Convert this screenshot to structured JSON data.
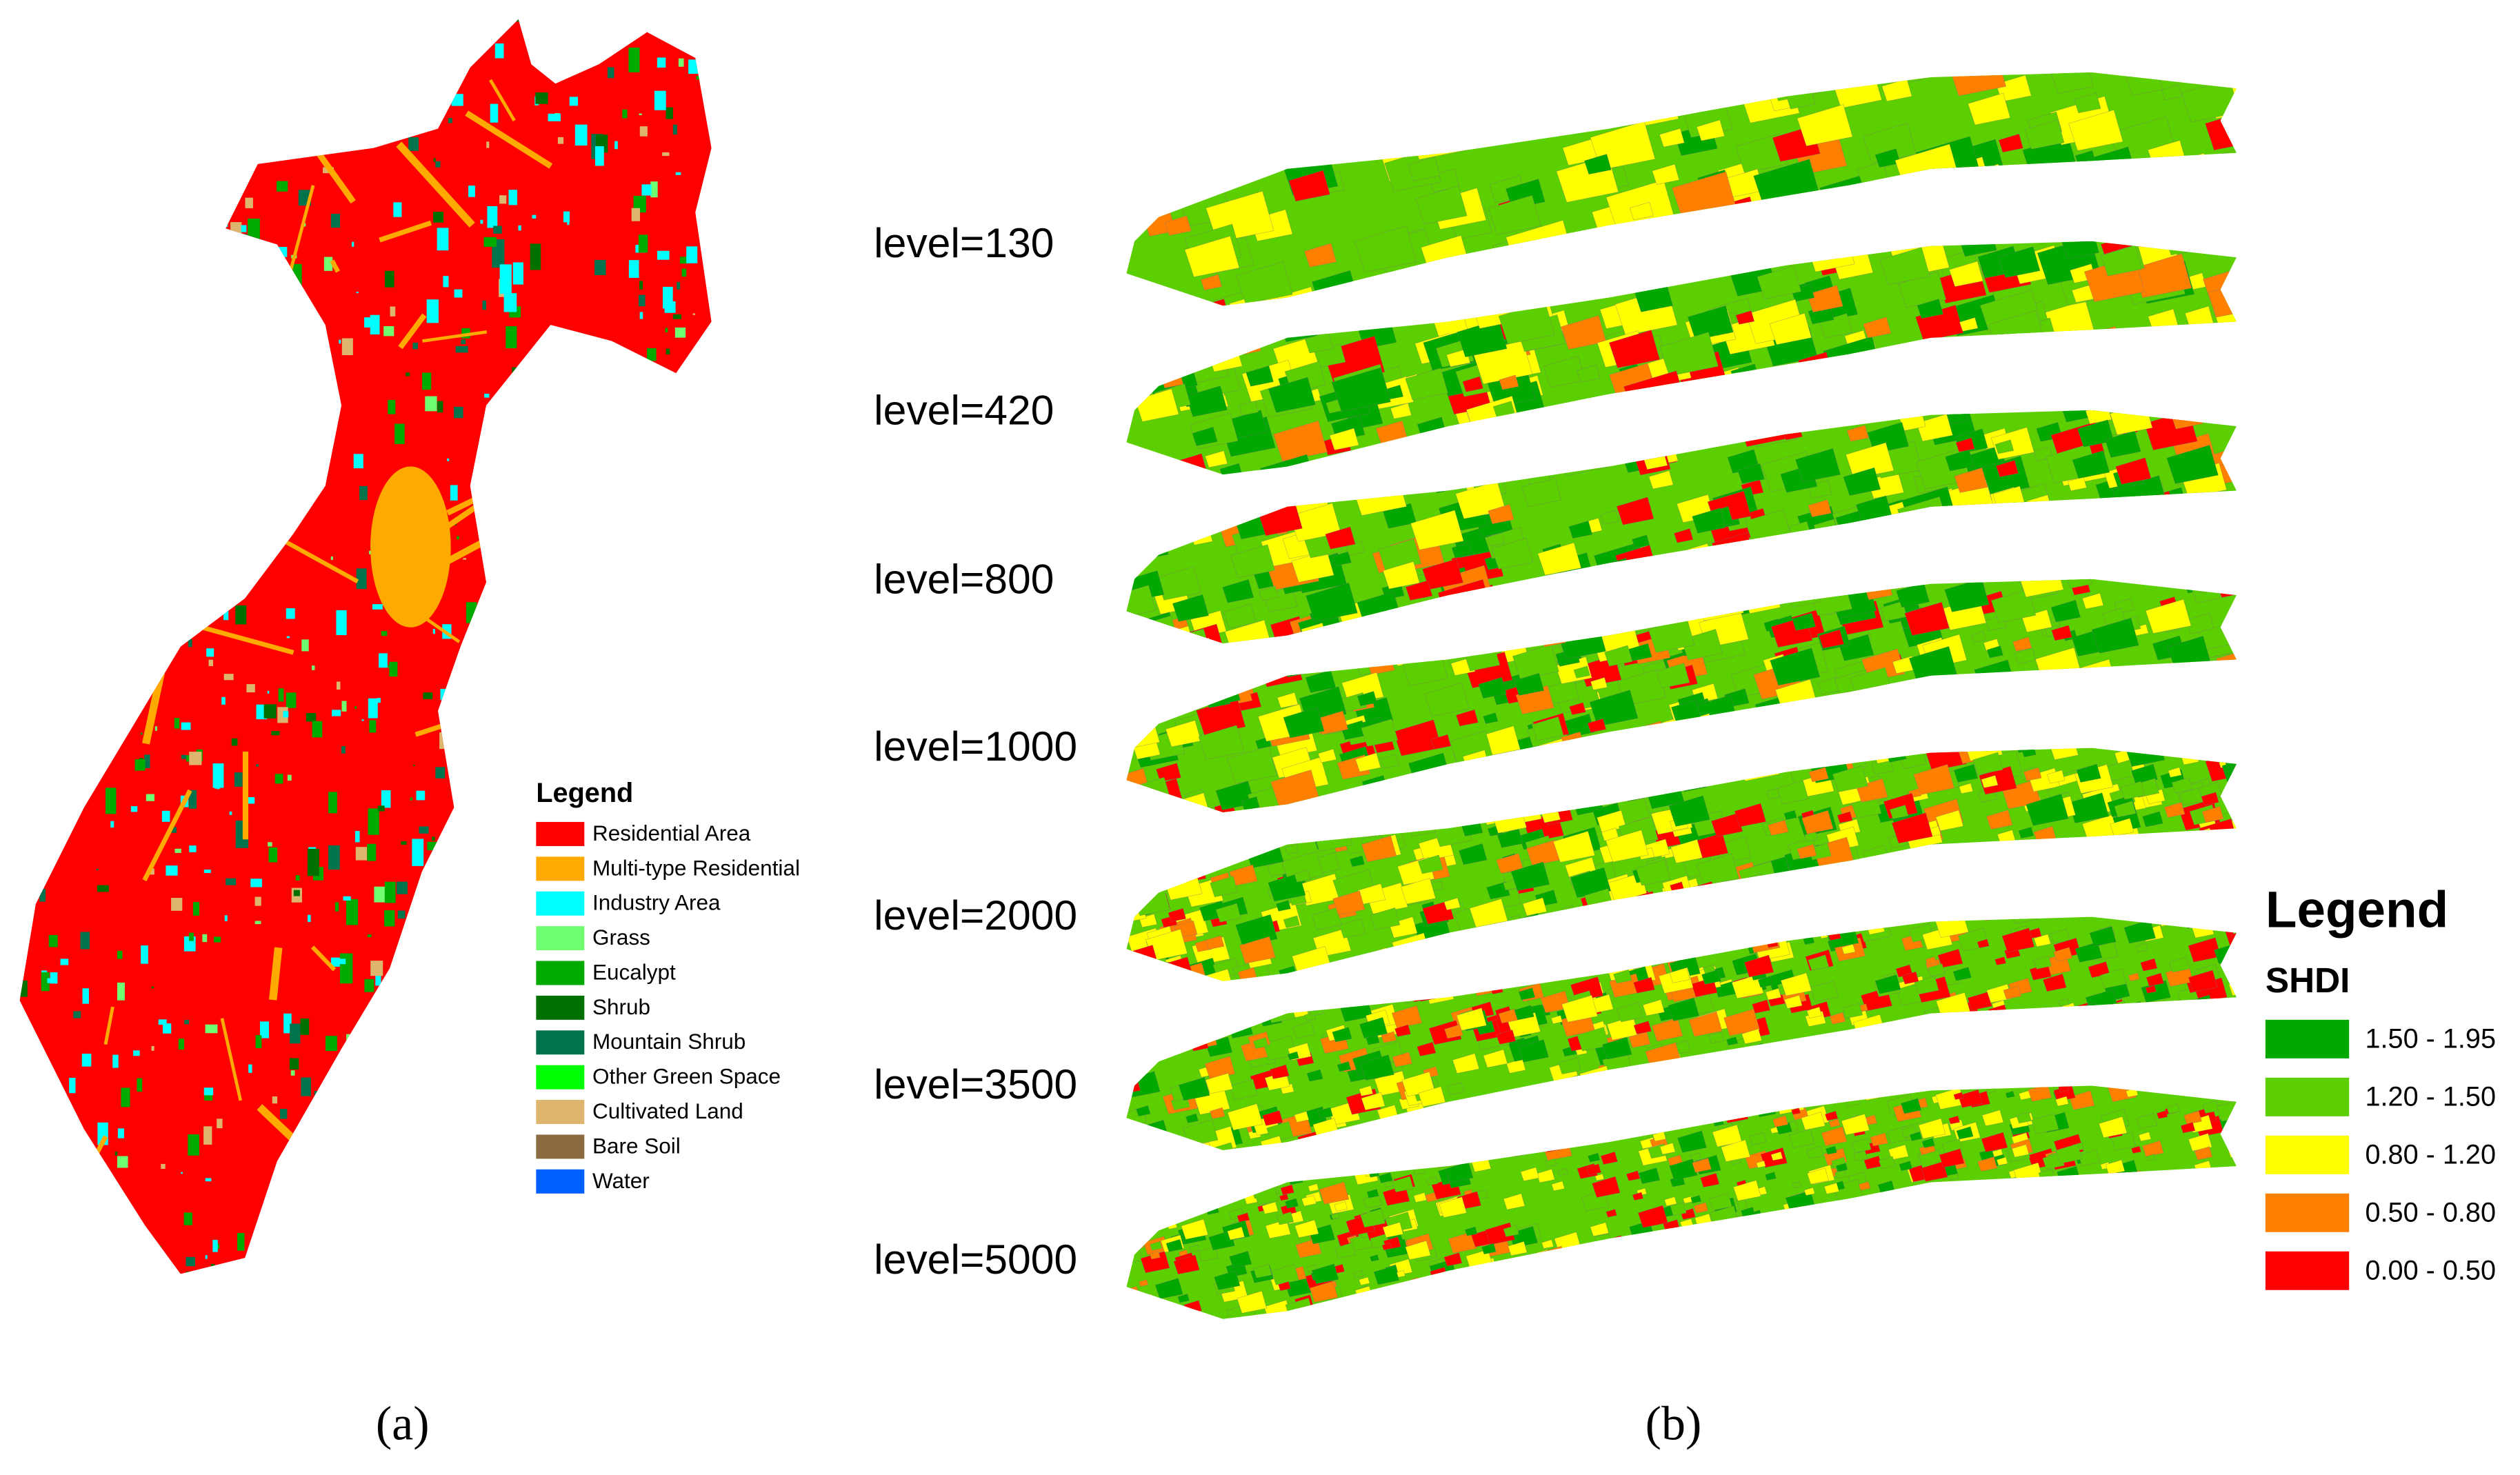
{
  "panel_a": {
    "caption": "(a)",
    "legend": {
      "title": "Legend",
      "items": [
        {
          "label": "Residential Area",
          "color": "#ff0000"
        },
        {
          "label": "Multi-type Residential",
          "color": "#ffaa00"
        },
        {
          "label": "Industry Area",
          "color": "#00ffff"
        },
        {
          "label": "Grass",
          "color": "#70ff70"
        },
        {
          "label": "Eucalypt",
          "color": "#00aa00"
        },
        {
          "label": "Shrub",
          "color": "#007000"
        },
        {
          "label": "Mountain Shrub",
          "color": "#00734c"
        },
        {
          "label": "Other Green Space",
          "color": "#00ff00"
        },
        {
          "label": "Cultivated Land",
          "color": "#deb56e"
        },
        {
          "label": "Bare Soil",
          "color": "#8c6a42"
        },
        {
          "label": "Water",
          "color": "#0060ff"
        }
      ]
    }
  },
  "panel_b": {
    "caption": "(b)",
    "levels": [
      "level=130",
      "level=420",
      "level=800",
      "level=1000",
      "level=2000",
      "level=3500",
      "level=5000"
    ],
    "legend": {
      "title": "Legend",
      "subtitle": "SHDI",
      "items": [
        {
          "label": "1.50 - 1.95",
          "color": "#00a800"
        },
        {
          "label": "1.20 - 1.50",
          "color": "#5ccf00"
        },
        {
          "label": "0.80 - 1.20",
          "color": "#ffff00"
        },
        {
          "label": "0.50 - 0.80",
          "color": "#ff8000"
        },
        {
          "label": "0.00 - 0.50",
          "color": "#ff0000"
        }
      ]
    }
  }
}
